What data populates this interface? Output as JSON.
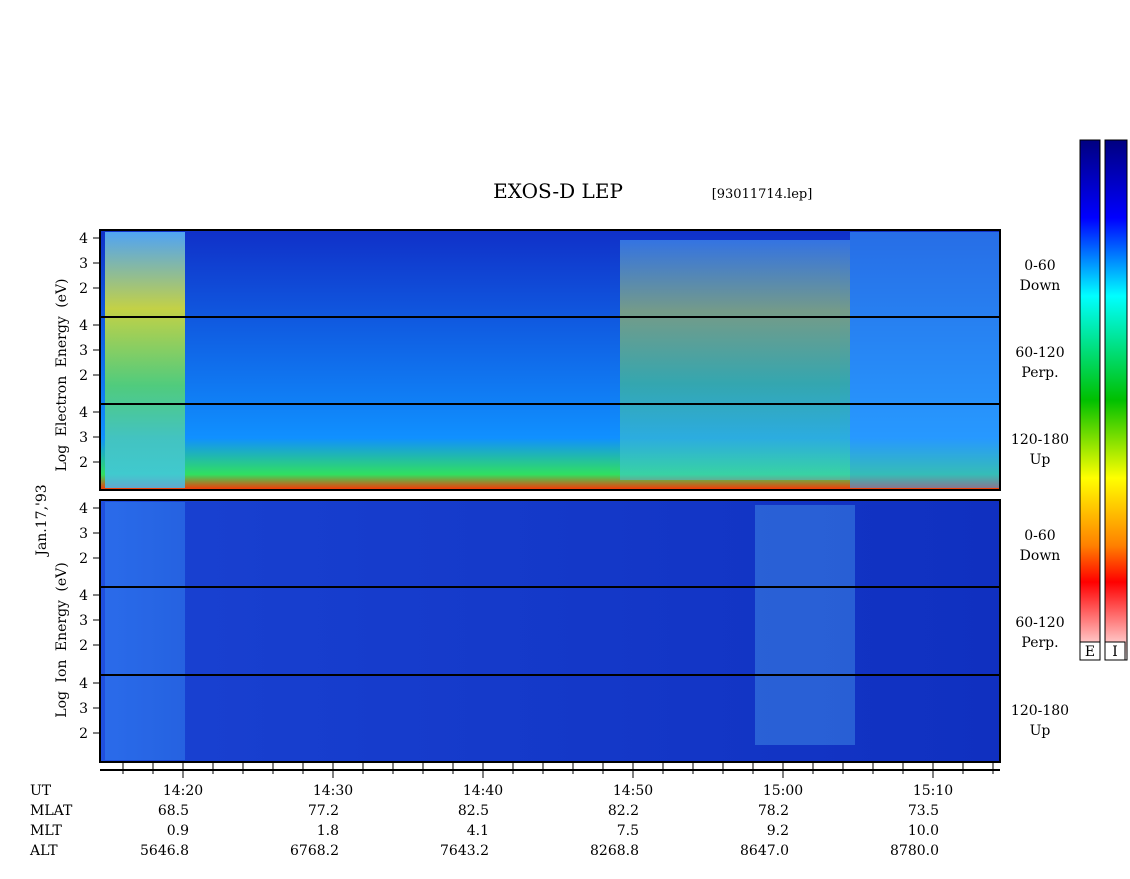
{
  "header": {
    "title": "EXOS-D LEP",
    "file": "[93011714.lep]",
    "date": "Jan.17,'93"
  },
  "electron": {
    "axis_label": "Log  Electron  Energy (eV)",
    "panels": [
      [
        "0-60",
        "Down"
      ],
      [
        "60-120",
        "Perp."
      ],
      [
        "120-180",
        "Up"
      ]
    ]
  },
  "ion": {
    "axis_label": "Log  Ion  Energy (eV)",
    "panels": [
      [
        "0-60",
        "Down"
      ],
      [
        "60-120",
        "Perp."
      ],
      [
        "120-180",
        "Up"
      ]
    ]
  },
  "energy_ticks": [
    "4",
    "3",
    "2"
  ],
  "orbit": {
    "rows": [
      {
        "name": "UT",
        "values": [
          "14:20",
          "14:30",
          "14:40",
          "14:50",
          "15:00",
          "15:10"
        ]
      },
      {
        "name": "MLAT",
        "values": [
          "68.5",
          "77.2",
          "82.5",
          "82.2",
          "78.2",
          "73.5"
        ]
      },
      {
        "name": "MLT",
        "values": [
          "0.9",
          "1.8",
          "4.1",
          "7.5",
          "9.2",
          "10.0"
        ]
      },
      {
        "name": "ALT",
        "values": [
          "5646.8",
          "6768.2",
          "7643.2",
          "8268.8",
          "8647.0",
          "8780.0"
        ]
      }
    ]
  },
  "colorbars": [
    "E",
    "I"
  ]
}
